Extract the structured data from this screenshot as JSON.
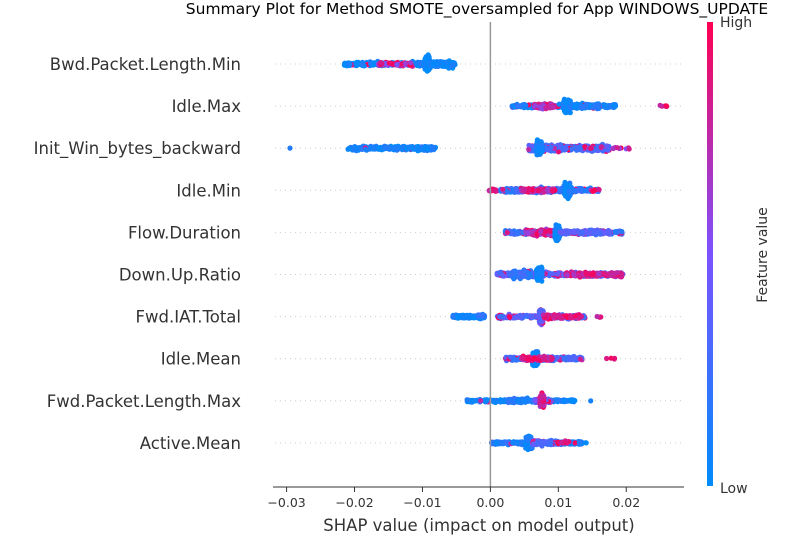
{
  "chart_data": {
    "type": "scatter",
    "title": "Summary Plot for Method SMOTE_oversampled for App WINDOWS_UPDATE",
    "xlabel": "SHAP value (impact on model output)",
    "xlim": [
      -0.032,
      0.0285
    ],
    "xticks": [
      -0.03,
      -0.02,
      -0.01,
      0.0,
      0.01,
      0.02
    ],
    "xtick_labels": [
      "−0.03",
      "−0.02",
      "−0.01",
      "0.00",
      "0.01",
      "0.02"
    ],
    "features": [
      {
        "name": "Bwd.Packet.Length.Min",
        "clusters": [
          {
            "from": -0.0215,
            "to": -0.0055,
            "spread": 0.3,
            "n": 320,
            "level": 0.06,
            "pinkFrac": 0.08
          },
          {
            "from": -0.0165,
            "to": -0.0115,
            "spread": 0.22,
            "n": 80,
            "level": 0.55,
            "pinkFrac": 0.5
          },
          {
            "from": -0.0097,
            "to": -0.0088,
            "spread": 1.0,
            "n": 130,
            "level": 0.04,
            "pinkFrac": 0.0
          },
          {
            "from": -0.0088,
            "to": -0.0052,
            "spread": 0.45,
            "n": 110,
            "level": 0.05,
            "pinkFrac": 0.0
          }
        ]
      },
      {
        "name": "Idle.Max",
        "clusters": [
          {
            "from": 0.0032,
            "to": 0.0185,
            "spread": 0.28,
            "n": 300,
            "level": 0.1,
            "pinkFrac": 0.12
          },
          {
            "from": 0.0065,
            "to": 0.0095,
            "spread": 0.35,
            "n": 120,
            "level": 0.65,
            "pinkFrac": 0.5
          },
          {
            "from": 0.0108,
            "to": 0.0118,
            "spread": 1.0,
            "n": 140,
            "level": 0.06,
            "pinkFrac": 0.0
          },
          {
            "from": 0.0118,
            "to": 0.016,
            "spread": 0.4,
            "n": 100,
            "level": 0.08,
            "pinkFrac": 0.05
          },
          {
            "from": 0.0232,
            "to": 0.0262,
            "spread": 0.12,
            "n": 6,
            "level": 0.95,
            "pinkFrac": 1.0
          }
        ]
      },
      {
        "name": "Init_Win_bytes_backward",
        "clusters": [
          {
            "from": -0.0295,
            "to": -0.0295,
            "spread": 0.05,
            "n": 1,
            "level": 0.05,
            "pinkFrac": 0.0
          },
          {
            "from": -0.021,
            "to": -0.008,
            "spread": 0.3,
            "n": 260,
            "level": 0.07,
            "pinkFrac": 0.02
          },
          {
            "from": 0.0055,
            "to": 0.0175,
            "spread": 0.55,
            "n": 260,
            "level": 0.3,
            "pinkFrac": 0.15
          },
          {
            "from": 0.0068,
            "to": 0.0076,
            "spread": 1.0,
            "n": 120,
            "level": 0.05,
            "pinkFrac": 0.0
          },
          {
            "from": 0.0145,
            "to": 0.0205,
            "spread": 0.2,
            "n": 14,
            "level": 0.6,
            "pinkFrac": 0.5
          }
        ]
      },
      {
        "name": "Idle.Min",
        "clusters": [
          {
            "from": -0.0002,
            "to": 0.001,
            "spread": 0.2,
            "n": 25,
            "level": 0.9,
            "pinkFrac": 0.9
          },
          {
            "from": 0.0015,
            "to": 0.016,
            "spread": 0.35,
            "n": 300,
            "level": 0.2,
            "pinkFrac": 0.15
          },
          {
            "from": 0.0045,
            "to": 0.0095,
            "spread": 0.3,
            "n": 90,
            "level": 0.7,
            "pinkFrac": 0.6
          },
          {
            "from": 0.0108,
            "to": 0.0118,
            "spread": 1.0,
            "n": 150,
            "level": 0.06,
            "pinkFrac": 0.0
          },
          {
            "from": 0.0148,
            "to": 0.0162,
            "spread": 0.2,
            "n": 8,
            "level": 0.9,
            "pinkFrac": 1.0
          }
        ]
      },
      {
        "name": "Flow.Duration",
        "clusters": [
          {
            "from": 0.0022,
            "to": 0.0195,
            "spread": 0.3,
            "n": 300,
            "level": 0.2,
            "pinkFrac": 0.15
          },
          {
            "from": 0.0052,
            "to": 0.0098,
            "spread": 0.4,
            "n": 120,
            "level": 0.7,
            "pinkFrac": 0.55
          },
          {
            "from": 0.0095,
            "to": 0.0102,
            "spread": 1.0,
            "n": 120,
            "level": 0.05,
            "pinkFrac": 0.0
          },
          {
            "from": 0.0102,
            "to": 0.0175,
            "spread": 0.35,
            "n": 90,
            "level": 0.35,
            "pinkFrac": 0.2
          }
        ]
      },
      {
        "name": "Down.Up.Ratio",
        "clusters": [
          {
            "from": 0.001,
            "to": 0.0195,
            "spread": 0.35,
            "n": 320,
            "level": 0.35,
            "pinkFrac": 0.25
          },
          {
            "from": 0.003,
            "to": 0.006,
            "spread": 0.7,
            "n": 120,
            "level": 0.2,
            "pinkFrac": 0.1
          },
          {
            "from": 0.0068,
            "to": 0.0076,
            "spread": 1.0,
            "n": 140,
            "level": 0.05,
            "pinkFrac": 0.0
          },
          {
            "from": 0.011,
            "to": 0.0195,
            "spread": 0.3,
            "n": 130,
            "level": 0.75,
            "pinkFrac": 0.7
          }
        ]
      },
      {
        "name": "Fwd.IAT.Total",
        "clusters": [
          {
            "from": -0.0055,
            "to": -0.001,
            "spread": 0.22,
            "n": 180,
            "level": 0.06,
            "pinkFrac": 0.0
          },
          {
            "from": -0.0018,
            "to": -0.0008,
            "spread": 0.35,
            "n": 40,
            "level": 0.15,
            "pinkFrac": 0.0
          },
          {
            "from": 0.001,
            "to": 0.014,
            "spread": 0.3,
            "n": 240,
            "level": 0.3,
            "pinkFrac": 0.2
          },
          {
            "from": 0.0072,
            "to": 0.0078,
            "spread": 1.0,
            "n": 140,
            "level": 0.4,
            "pinkFrac": 0.25
          },
          {
            "from": 0.0078,
            "to": 0.0135,
            "spread": 0.3,
            "n": 80,
            "level": 0.8,
            "pinkFrac": 0.7
          },
          {
            "from": 0.0155,
            "to": 0.0172,
            "spread": 0.15,
            "n": 4,
            "level": 0.7,
            "pinkFrac": 0.5
          }
        ]
      },
      {
        "name": "Idle.Mean",
        "clusters": [
          {
            "from": 0.0022,
            "to": 0.0135,
            "spread": 0.3,
            "n": 260,
            "level": 0.25,
            "pinkFrac": 0.2
          },
          {
            "from": 0.0062,
            "to": 0.007,
            "spread": 1.0,
            "n": 140,
            "level": 0.05,
            "pinkFrac": 0.0
          },
          {
            "from": 0.0045,
            "to": 0.0095,
            "spread": 0.35,
            "n": 70,
            "level": 0.8,
            "pinkFrac": 0.7
          },
          {
            "from": 0.0155,
            "to": 0.019,
            "spread": 0.15,
            "n": 4,
            "level": 0.95,
            "pinkFrac": 1.0
          }
        ]
      },
      {
        "name": "Fwd.Packet.Length.Max",
        "clusters": [
          {
            "from": -0.0035,
            "to": 0.0125,
            "spread": 0.2,
            "n": 260,
            "level": 0.06,
            "pinkFrac": 0.02
          },
          {
            "from": 0.0065,
            "to": 0.009,
            "spread": 0.35,
            "n": 70,
            "level": 0.4,
            "pinkFrac": 0.3
          },
          {
            "from": 0.0073,
            "to": 0.0079,
            "spread": 1.0,
            "n": 140,
            "level": 0.7,
            "pinkFrac": 0.55
          },
          {
            "from": 0.0025,
            "to": 0.0055,
            "spread": 0.4,
            "n": 50,
            "level": 0.15,
            "pinkFrac": 0.05
          },
          {
            "from": 0.0145,
            "to": 0.015,
            "spread": 0.05,
            "n": 1,
            "level": 0.05,
            "pinkFrac": 0.0
          }
        ]
      },
      {
        "name": "Active.Mean",
        "clusters": [
          {
            "from": 0.0001,
            "to": 0.0135,
            "spread": 0.25,
            "n": 260,
            "level": 0.12,
            "pinkFrac": 0.05
          },
          {
            "from": 0.0052,
            "to": 0.0062,
            "spread": 1.0,
            "n": 150,
            "level": 0.05,
            "pinkFrac": 0.0
          },
          {
            "from": 0.0062,
            "to": 0.0105,
            "spread": 0.4,
            "n": 90,
            "level": 0.3,
            "pinkFrac": 0.2
          },
          {
            "from": 0.0098,
            "to": 0.0118,
            "spread": 0.25,
            "n": 12,
            "level": 0.95,
            "pinkFrac": 1.0
          },
          {
            "from": 0.0138,
            "to": 0.0142,
            "spread": 0.1,
            "n": 2,
            "level": 0.05,
            "pinkFrac": 0.0
          }
        ]
      }
    ],
    "colorbar": {
      "title": "Feature value",
      "high_label": "High",
      "low_label": "Low",
      "low_color": "#008bfb",
      "high_color": "#ff0052",
      "mid_color": "#7c52ff"
    },
    "zero_line_color": "#999999",
    "grid_color": "#cccccc"
  }
}
